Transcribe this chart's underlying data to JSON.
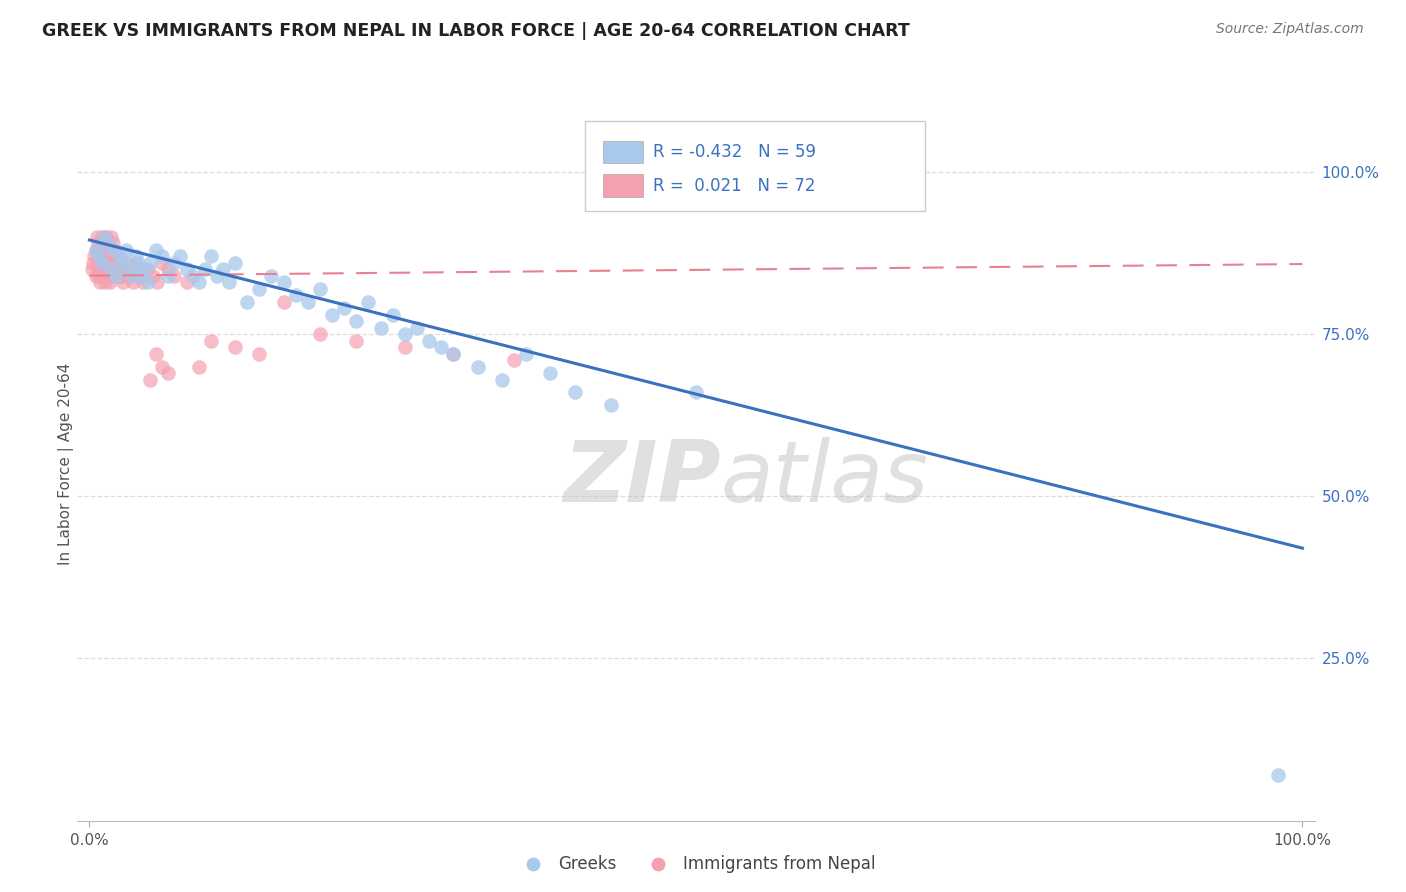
{
  "title": "GREEK VS IMMIGRANTS FROM NEPAL IN LABOR FORCE | AGE 20-64 CORRELATION CHART",
  "source": "Source: ZipAtlas.com",
  "ylabel": "In Labor Force | Age 20-64",
  "legend_label1": "Greeks",
  "legend_label2": "Immigrants from Nepal",
  "legend_R1": "-0.432",
  "legend_N1": "59",
  "legend_R2": "0.021",
  "legend_N2": "72",
  "color_blue": "#A8C8EC",
  "color_pink": "#F4A0B0",
  "color_blue_line": "#3A72C0",
  "color_pink_line": "#E88090",
  "color_text_blue": "#3A72C0",
  "watermark_zip": "ZIP",
  "watermark_atlas": "atlas",
  "blue_scatter_x": [
    0.005,
    0.008,
    0.01,
    0.012,
    0.015,
    0.018,
    0.02,
    0.022,
    0.025,
    0.028,
    0.03,
    0.032,
    0.035,
    0.038,
    0.04,
    0.042,
    0.045,
    0.048,
    0.05,
    0.055,
    0.06,
    0.065,
    0.07,
    0.075,
    0.08,
    0.085,
    0.09,
    0.095,
    0.1,
    0.105,
    0.11,
    0.115,
    0.12,
    0.13,
    0.14,
    0.15,
    0.16,
    0.17,
    0.18,
    0.19,
    0.2,
    0.21,
    0.22,
    0.23,
    0.24,
    0.25,
    0.26,
    0.27,
    0.28,
    0.29,
    0.3,
    0.32,
    0.34,
    0.36,
    0.38,
    0.4,
    0.43,
    0.5,
    0.98
  ],
  "blue_scatter_y": [
    0.88,
    0.87,
    0.86,
    0.9,
    0.89,
    0.85,
    0.88,
    0.84,
    0.87,
    0.86,
    0.88,
    0.85,
    0.84,
    0.87,
    0.86,
    0.84,
    0.85,
    0.83,
    0.86,
    0.88,
    0.87,
    0.84,
    0.86,
    0.87,
    0.85,
    0.84,
    0.83,
    0.85,
    0.87,
    0.84,
    0.85,
    0.83,
    0.86,
    0.8,
    0.82,
    0.84,
    0.83,
    0.81,
    0.8,
    0.82,
    0.78,
    0.79,
    0.77,
    0.8,
    0.76,
    0.78,
    0.75,
    0.76,
    0.74,
    0.73,
    0.72,
    0.7,
    0.68,
    0.72,
    0.69,
    0.66,
    0.64,
    0.66,
    0.07
  ],
  "pink_scatter_x": [
    0.002,
    0.003,
    0.004,
    0.005,
    0.005,
    0.006,
    0.006,
    0.007,
    0.007,
    0.008,
    0.008,
    0.009,
    0.009,
    0.01,
    0.01,
    0.011,
    0.011,
    0.012,
    0.012,
    0.013,
    0.013,
    0.014,
    0.014,
    0.015,
    0.015,
    0.016,
    0.016,
    0.017,
    0.017,
    0.018,
    0.018,
    0.019,
    0.019,
    0.02,
    0.02,
    0.021,
    0.022,
    0.023,
    0.024,
    0.025,
    0.026,
    0.027,
    0.028,
    0.03,
    0.032,
    0.034,
    0.036,
    0.038,
    0.04,
    0.042,
    0.044,
    0.048,
    0.052,
    0.056,
    0.06,
    0.065,
    0.07,
    0.08,
    0.09,
    0.1,
    0.12,
    0.14,
    0.16,
    0.19,
    0.22,
    0.26,
    0.3,
    0.35,
    0.05,
    0.055,
    0.06,
    0.065
  ],
  "pink_scatter_y": [
    0.85,
    0.86,
    0.87,
    0.88,
    0.84,
    0.9,
    0.86,
    0.89,
    0.85,
    0.88,
    0.84,
    0.87,
    0.83,
    0.9,
    0.86,
    0.89,
    0.85,
    0.88,
    0.84,
    0.87,
    0.83,
    0.9,
    0.86,
    0.89,
    0.85,
    0.88,
    0.84,
    0.87,
    0.83,
    0.9,
    0.86,
    0.89,
    0.85,
    0.88,
    0.84,
    0.87,
    0.86,
    0.85,
    0.84,
    0.86,
    0.85,
    0.84,
    0.83,
    0.86,
    0.85,
    0.84,
    0.83,
    0.86,
    0.85,
    0.84,
    0.83,
    0.85,
    0.84,
    0.83,
    0.86,
    0.85,
    0.84,
    0.83,
    0.7,
    0.74,
    0.73,
    0.72,
    0.8,
    0.75,
    0.74,
    0.73,
    0.72,
    0.71,
    0.68,
    0.72,
    0.7,
    0.69
  ],
  "blue_line_x0": 0.0,
  "blue_line_y0": 0.895,
  "blue_line_x1": 1.0,
  "blue_line_y1": 0.42,
  "pink_line_x0": 0.0,
  "pink_line_y0": 0.84,
  "pink_line_x1": 1.0,
  "pink_line_y1": 0.858,
  "xlim": [
    -0.01,
    1.01
  ],
  "ylim": [
    0.0,
    1.1
  ],
  "yticks": [
    0.25,
    0.5,
    0.75,
    1.0
  ],
  "ytick_labels": [
    "25.0%",
    "50.0%",
    "75.0%",
    "100.0%"
  ],
  "background": "#FFFFFF",
  "grid_color": "#DDDDDD"
}
